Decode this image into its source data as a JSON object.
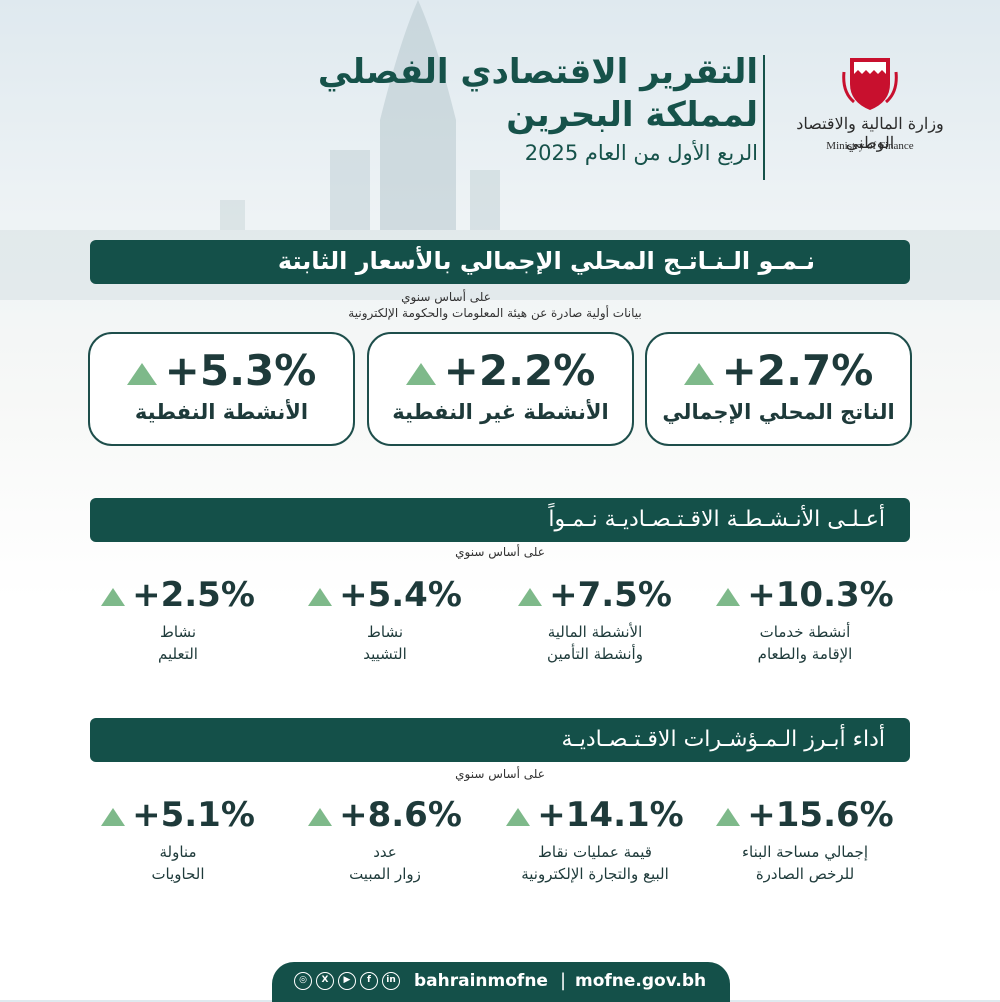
{
  "header": {
    "title_line1": "التقرير الاقتصادي الفصلي",
    "title_line2": "لمملكة البحرين",
    "subtitle": "الربع الأول من العام 2025",
    "ministry_ar": "وزارة المالية والاقتصاد الوطني",
    "ministry_en": "Ministry of Finance"
  },
  "gdp_section": {
    "title": "نـمـو الـنـاتـج المحلي الإجمالي بالأسعار الثابتة",
    "basis": "على أساس سنوي",
    "source_note": "بيانات أولية صادرة عن هيئة المعلومات والحكومة الإلكترونية",
    "cards": [
      {
        "value": "+2.7%",
        "label": "الناتج المحلي الإجمالي"
      },
      {
        "value": "+2.2%",
        "label": "الأنشطة غير النفطية"
      },
      {
        "value": "+5.3%",
        "label": "الأنشطة النفطية"
      }
    ]
  },
  "top_activities": {
    "title": "أعـلـى الأنـشـطـة الاقـتـصـاديـة نـمـواً",
    "basis": "على أساس سنوي",
    "items": [
      {
        "value": "+10.3%",
        "label_line1": "أنشطة خدمات",
        "label_line2": "الإقامة والطعام"
      },
      {
        "value": "+7.5%",
        "label_line1": "الأنشطة المالية",
        "label_line2": "وأنشطة التأمين"
      },
      {
        "value": "+5.4%",
        "label_line1": "نشاط",
        "label_line2": "التشييد"
      },
      {
        "value": "+2.5%",
        "label_line1": "نشاط",
        "label_line2": "التعليم"
      }
    ]
  },
  "indicators": {
    "title": "أداء أبـرز الـمـؤشـرات الاقـتـصـاديـة",
    "basis": "على أساس سنوي",
    "items": [
      {
        "value": "+15.6%",
        "label_line1": "إجمالي مساحة البناء",
        "label_line2": "للرخص الصادرة"
      },
      {
        "value": "+14.1%",
        "label_line1": "قيمة عمليات نقاط",
        "label_line2": "البيع والتجارة الإلكترونية"
      },
      {
        "value": "+8.6%",
        "label_line1": "عدد",
        "label_line2": "زوار المبيت"
      },
      {
        "value": "+5.1%",
        "label_line1": "مناولة",
        "label_line2": "الحاويات"
      }
    ]
  },
  "footer": {
    "social_icons": [
      "instagram-icon",
      "x-icon",
      "youtube-icon",
      "facebook-icon",
      "linkedin-icon"
    ],
    "handle": "bahrainmofne",
    "separator": "|",
    "website": "mofne.gov.bh"
  },
  "colors": {
    "primary": "#145049",
    "accent": "#7eb98a",
    "text": "#1e3a3a",
    "logo_red": "#c8102e"
  }
}
